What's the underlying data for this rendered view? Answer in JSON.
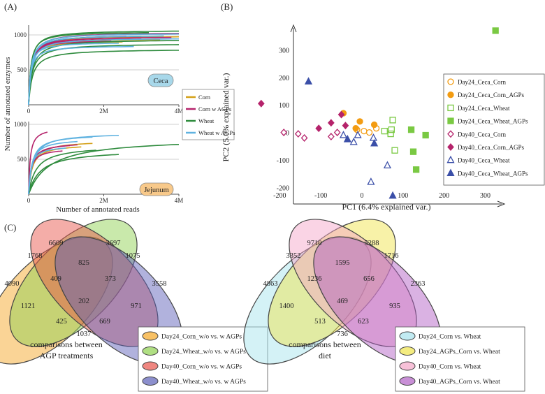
{
  "panel_labels": {
    "a": "(A)",
    "b": "(B)",
    "c": "(C)"
  },
  "chart_data": [
    {
      "id": "rarefaction",
      "type": "line",
      "ylabel": "Number of annotated enzymes",
      "xlabel": "Number of annotated reads",
      "legend": {
        "placement": "right",
        "entries": [
          {
            "name": "Corn",
            "color": "#d4a017"
          },
          {
            "name": "Corn w AGPs",
            "color": "#b5236b"
          },
          {
            "name": "Wheat",
            "color": "#2e8b3d"
          },
          {
            "name": "Wheat w AGPs",
            "color": "#5fb2e0"
          }
        ]
      },
      "panels": [
        {
          "label": "Ceca",
          "label_bg": "#a8d8ea",
          "xlim": [
            0,
            4000000
          ],
          "ylim": [
            0,
            1100
          ],
          "xticks": [
            {
              "value": 0,
              "label": "0"
            },
            {
              "value": 2000000,
              "label": "2M"
            },
            {
              "value": 4000000,
              "label": "4M"
            }
          ],
          "yticks": [
            {
              "value": 500,
              "label": "500"
            },
            {
              "value": 1000,
              "label": "1000"
            }
          ],
          "curves": [
            {
              "group": 0,
              "xmax": 4000000,
              "ymax": 990,
              "k": 70000
            },
            {
              "group": 0,
              "xmax": 3500000,
              "ymax": 950,
              "k": 60000
            },
            {
              "group": 0,
              "xmax": 3000000,
              "ymax": 1000,
              "k": 80000
            },
            {
              "group": 0,
              "xmax": 2500000,
              "ymax": 920,
              "k": 55000
            },
            {
              "group": 1,
              "xmax": 4000000,
              "ymax": 1040,
              "k": 70000
            },
            {
              "group": 1,
              "xmax": 3800000,
              "ymax": 980,
              "k": 65000
            },
            {
              "group": 1,
              "xmax": 3000000,
              "ymax": 960,
              "k": 60000
            },
            {
              "group": 1,
              "xmax": 2600000,
              "ymax": 1010,
              "k": 75000
            },
            {
              "group": 1,
              "xmax": 2200000,
              "ymax": 930,
              "k": 50000
            },
            {
              "group": 2,
              "xmax": 4000000,
              "ymax": 1070,
              "k": 60000
            },
            {
              "group": 2,
              "xmax": 4000000,
              "ymax": 940,
              "k": 90000
            },
            {
              "group": 2,
              "xmax": 4000000,
              "ymax": 880,
              "k": 90000
            },
            {
              "group": 2,
              "xmax": 4000000,
              "ymax": 800,
              "k": 100000
            },
            {
              "group": 2,
              "xmax": 3200000,
              "ymax": 1050,
              "k": 55000
            },
            {
              "group": 2,
              "xmax": 3000000,
              "ymax": 1000,
              "k": 60000
            },
            {
              "group": 3,
              "xmax": 4000000,
              "ymax": 1030,
              "k": 65000
            },
            {
              "group": 3,
              "xmax": 4000000,
              "ymax": 960,
              "k": 70000
            },
            {
              "group": 3,
              "xmax": 3600000,
              "ymax": 1000,
              "k": 60000
            },
            {
              "group": 3,
              "xmax": 2800000,
              "ymax": 850,
              "k": 55000
            },
            {
              "group": 3,
              "xmax": 2400000,
              "ymax": 900,
              "k": 50000
            }
          ]
        },
        {
          "label": "Jejunum",
          "label_bg": "#f8c98a",
          "xlim": [
            0,
            4000000
          ],
          "ylim": [
            0,
            1000
          ],
          "xticks": [
            {
              "value": 0,
              "label": "0"
            },
            {
              "value": 2000000,
              "label": "2M"
            },
            {
              "value": 4000000,
              "label": "4M"
            }
          ],
          "yticks": [
            {
              "value": 500,
              "label": "500"
            },
            {
              "value": 1000,
              "label": "1000"
            }
          ],
          "curves": [
            {
              "group": 0,
              "xmax": 1700000,
              "ymax": 770,
              "k": 100000
            },
            {
              "group": 0,
              "xmax": 1400000,
              "ymax": 720,
              "k": 90000
            },
            {
              "group": 1,
              "xmax": 500000,
              "ymax": 960,
              "k": 40000
            },
            {
              "group": 1,
              "xmax": 1300000,
              "ymax": 750,
              "k": 80000
            },
            {
              "group": 1,
              "xmax": 1100000,
              "ymax": 740,
              "k": 70000
            },
            {
              "group": 1,
              "xmax": 900000,
              "ymax": 660,
              "k": 60000
            },
            {
              "group": 2,
              "xmax": 4000000,
              "ymax": 810,
              "k": 550000
            },
            {
              "group": 2,
              "xmax": 2400000,
              "ymax": 640,
              "k": 300000
            },
            {
              "group": 2,
              "xmax": 1800000,
              "ymax": 700,
              "k": 200000
            },
            {
              "group": 3,
              "xmax": 2400000,
              "ymax": 880,
              "k": 110000
            },
            {
              "group": 3,
              "xmax": 1700000,
              "ymax": 860,
              "k": 90000
            },
            {
              "group": 3,
              "xmax": 1300000,
              "ymax": 800,
              "k": 80000
            },
            {
              "group": 3,
              "xmax": 1000000,
              "ymax": 700,
              "k": 60000
            }
          ]
        }
      ]
    },
    {
      "id": "pca",
      "type": "scatter",
      "xlabel": "PC1 (6.4% explained var.)",
      "ylabel": "PC2 (5.0% explained var.)",
      "xlim": [
        -260,
        340
      ],
      "ylim": [
        -260,
        390
      ],
      "xticks": [
        -200,
        -100,
        0,
        100,
        200,
        300
      ],
      "yticks": [
        -200,
        -100,
        0,
        100,
        200,
        300
      ],
      "legend_placement": "right",
      "series": [
        {
          "name": "Day24_Ceca_Corn",
          "color": "#f39c12",
          "marker": "circle",
          "filled": false,
          "points": [
            [
              -12,
              10
            ],
            [
              5,
              5
            ],
            [
              18,
              0
            ],
            [
              35,
              15
            ]
          ]
        },
        {
          "name": "Day24_Ceca_Corn_AGPs",
          "color": "#f39c12",
          "marker": "circle",
          "filled": true,
          "points": [
            [
              -45,
              70
            ],
            [
              -5,
              40
            ],
            [
              30,
              28
            ],
            [
              -15,
              15
            ]
          ]
        },
        {
          "name": "Day24_Ceca_Wheat",
          "color": "#7ac943",
          "marker": "square",
          "filled": false,
          "points": [
            [
              75,
              45
            ],
            [
              72,
              10
            ],
            [
              70,
              -5
            ],
            [
              80,
              -65
            ],
            [
              55,
              5
            ]
          ]
        },
        {
          "name": "Day24_Ceca_Wheat_AGPs",
          "color": "#7ac943",
          "marker": "square",
          "filled": true,
          "points": [
            [
              325,
              370
            ],
            [
              120,
              10
            ],
            [
              155,
              -10
            ],
            [
              125,
              -70
            ],
            [
              132,
              -135
            ]
          ]
        },
        {
          "name": "Day40_Ceca_Corn",
          "color": "#b5236b",
          "marker": "diamond",
          "filled": false,
          "points": [
            [
              -190,
              0
            ],
            [
              -155,
              -5
            ],
            [
              -140,
              -20
            ],
            [
              -75,
              -15
            ],
            [
              -60,
              0
            ]
          ]
        },
        {
          "name": "Day40_Ceca_Corn_AGPs",
          "color": "#b5236b",
          "marker": "diamond",
          "filled": true,
          "points": [
            [
              -245,
              105
            ],
            [
              -105,
              15
            ],
            [
              -75,
              35
            ],
            [
              -50,
              65
            ],
            [
              -40,
              25
            ]
          ]
        },
        {
          "name": "Day40_Ceca_Wheat",
          "color": "#3b4fa8",
          "marker": "triangle",
          "filled": false,
          "points": [
            [
              -45,
              -10
            ],
            [
              -20,
              -35
            ],
            [
              -10,
              -10
            ],
            [
              22,
              -180
            ],
            [
              28,
              -20
            ],
            [
              62,
              -120
            ]
          ]
        },
        {
          "name": "Day40_Ceca_Wheat_AGPs",
          "color": "#3b4fa8",
          "marker": "triangle",
          "filled": true,
          "points": [
            [
              -130,
              185
            ],
            [
              -35,
              -25
            ],
            [
              30,
              -40
            ],
            [
              75,
              -230
            ]
          ]
        }
      ]
    },
    {
      "id": "venn-agp",
      "type": "venn",
      "caption": [
        "comparisons between",
        "AGP treatments"
      ],
      "sets": [
        {
          "name": "Day24_Corn_w/o vs. w AGPs",
          "color": "#f5a623"
        },
        {
          "name": "Day24_Wheat_w/o vs. w AGPs",
          "color": "#8fd14f"
        },
        {
          "name": "Day40_Corn_w/o vs. w AGPs",
          "color": "#e8534a"
        },
        {
          "name": "Day40_Wheat_w/o vs. w AGPs",
          "color": "#5b5fb8"
        }
      ],
      "counts": [
        "4090",
        "6609",
        "3697",
        "3558",
        "1768",
        "825",
        "1075",
        "409",
        "373",
        "1121",
        "202",
        "971",
        "425",
        "669",
        "1037"
      ]
    },
    {
      "id": "venn-diet",
      "type": "venn",
      "caption": [
        "comparisons between",
        "diet"
      ],
      "sets": [
        {
          "name": "Day24_Corn vs. Wheat",
          "color": "#a6e3ec"
        },
        {
          "name": "Day24_AGPs_Corn vs. Wheat",
          "color": "#f0e44a"
        },
        {
          "name": "Day40_Corn vs. Wheat",
          "color": "#f4a6c8"
        },
        {
          "name": "Day40_AGPs_Corn vs. Wheat",
          "color": "#b15fc4"
        }
      ],
      "counts": [
        "4863",
        "9710",
        "5288",
        "2363",
        "3352",
        "1595",
        "1716",
        "1236",
        "656",
        "1400",
        "469",
        "935",
        "513",
        "623",
        "736"
      ]
    }
  ]
}
